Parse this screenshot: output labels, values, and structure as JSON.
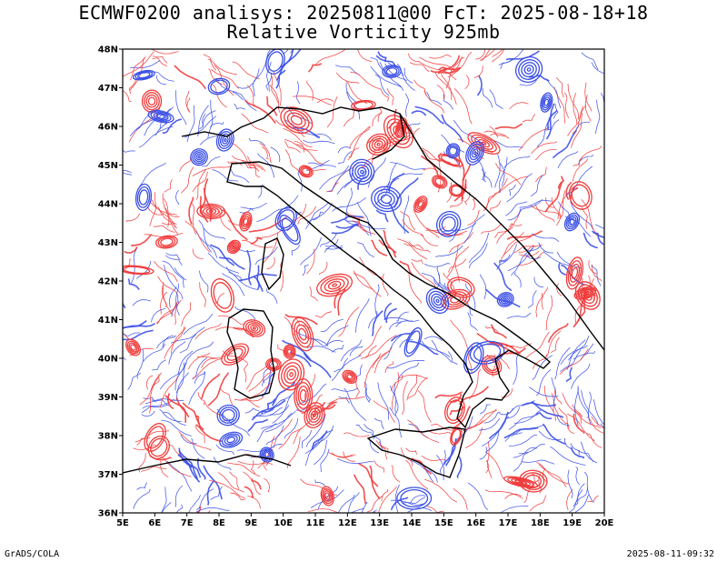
{
  "title": {
    "line1": "ECMWF0200 analisys: 20250811@00 FcT: 2025-08-18+18",
    "line2": "Relative Vorticity 925mb"
  },
  "map": {
    "lon_range": [
      5,
      20
    ],
    "lat_range": [
      36,
      48
    ],
    "lon_ticks": [
      "5E",
      "6E",
      "7E",
      "8E",
      "9E",
      "10E",
      "11E",
      "12E",
      "13E",
      "14E",
      "15E",
      "16E",
      "17E",
      "18E",
      "19E",
      "20E"
    ],
    "lat_ticks": [
      "36N",
      "37N",
      "38N",
      "39N",
      "40N",
      "41N",
      "42N",
      "43N",
      "44N",
      "45N",
      "46N",
      "47N",
      "48N"
    ],
    "positive_color": "#f03c3c",
    "negative_color": "#3c50e6",
    "coastline_color": "#000000"
  },
  "footer": {
    "credit": "GrADS/COLA",
    "timestamp": "2025-08-11-09:32"
  }
}
